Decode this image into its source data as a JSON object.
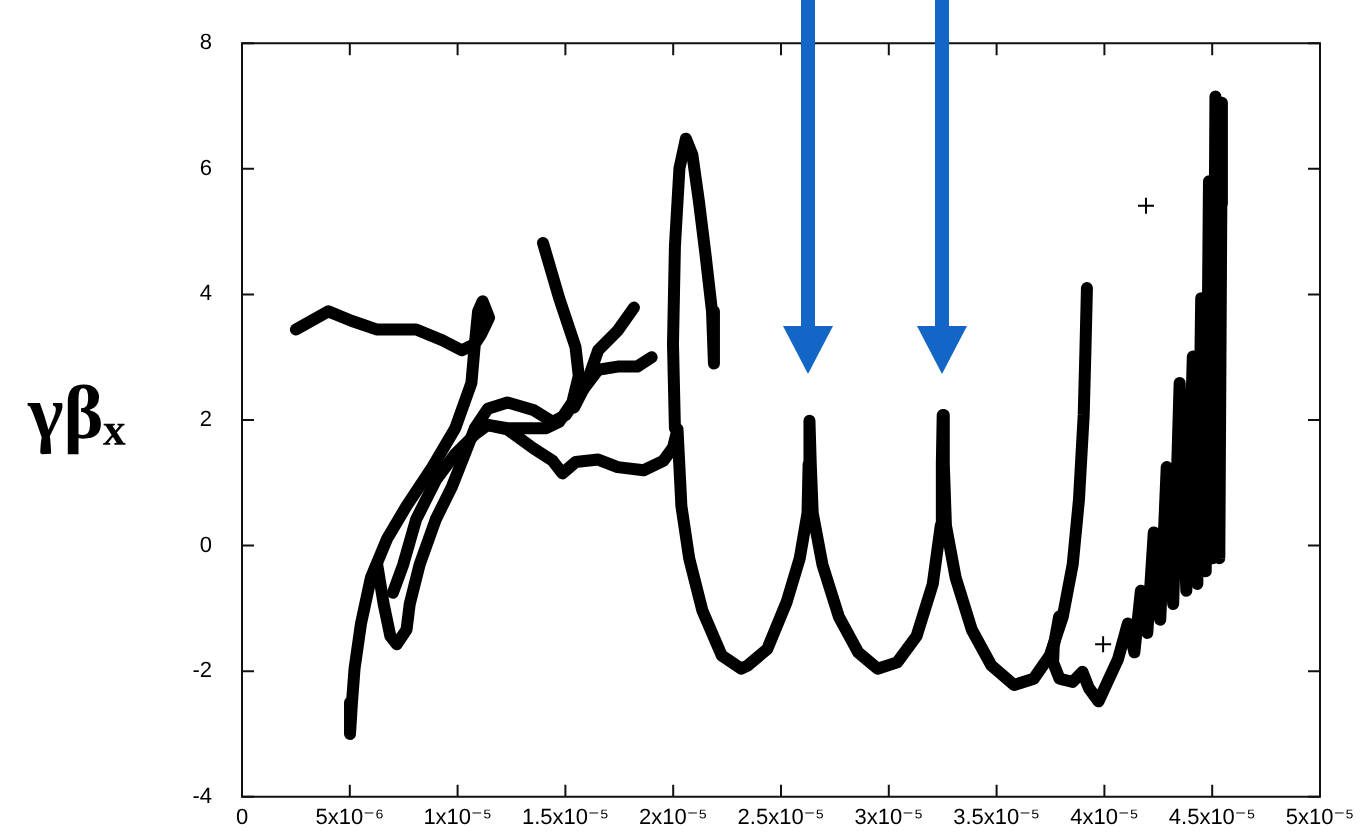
{
  "chart_data": {
    "type": "line",
    "ylabel": "γβₓ",
    "xlim": [
      0,
      5e-05
    ],
    "ylim": [
      -4,
      8
    ],
    "xticks": [
      0,
      {
        "value": 5e-06,
        "label": "5x10⁻⁶"
      },
      {
        "value": 1e-05,
        "label": "1x10⁻⁵"
      },
      {
        "value": 1.5e-05,
        "label": "1.5x10⁻⁵"
      },
      {
        "value": 2e-05,
        "label": "2x10⁻⁵"
      },
      {
        "value": 2.5e-05,
        "label": "2.5x10⁻⁵"
      },
      {
        "value": 3e-05,
        "label": "3x10⁻⁵"
      },
      {
        "value": 3.5e-05,
        "label": "3.5x10⁻⁵"
      },
      {
        "value": 4e-05,
        "label": "4x10⁻⁵"
      },
      {
        "value": 4.5e-05,
        "label": "4.5x10⁻⁵"
      },
      {
        "value": 5e-05,
        "label": "5x10⁻⁵"
      }
    ],
    "yticks": [
      -4,
      -2,
      0,
      2,
      4,
      6,
      8
    ],
    "series": [
      {
        "color": "#000000",
        "x": [
          2.5e-06,
          4.01e-06,
          5.07e-06,
          6.27e-06,
          8.08e-06,
          9.29e-06,
          1.019e-05,
          1.08e-05,
          1.095e-05,
          1.116e-05,
          1.146e-05,
          1.11e-05,
          1.08e-05,
          1.064e-05,
          9.89e-06,
          8.83e-06,
          7.63e-06,
          6.73e-06,
          5.98e-06,
          5.52e-06,
          5.22e-06,
          5.1e-06,
          5.01e-06
        ],
        "values": [
          3.44,
          3.73,
          3.58,
          3.44,
          3.44,
          3.27,
          3.11,
          3.21,
          3.73,
          3.89,
          3.63,
          3.37,
          3.21,
          2.59,
          1.87,
          1.25,
          0.63,
          0.11,
          -0.51,
          -1.24,
          -1.96,
          -2.5,
          -3.0
        ]
      },
      {
        "color": "#000000",
        "x": [
          6.27e-06,
          6.57e-06,
          6.88e-06,
          7.18e-06,
          7.63e-06,
          7.78e-06,
          8.24e-06,
          8.99e-06,
          9.74e-06,
          1.034e-05,
          1.08e-05,
          1.14e-05,
          1.231e-05,
          1.351e-05,
          1.441e-05,
          1.502e-05,
          1.562e-05,
          1.652e-05,
          1.742e-05,
          1.833e-05,
          1.9e-05
        ],
        "values": [
          -0.3,
          -0.93,
          -1.44,
          -1.57,
          -1.34,
          -0.93,
          -0.3,
          0.42,
          0.94,
          1.46,
          1.87,
          2.18,
          2.28,
          2.16,
          1.97,
          2.08,
          2.39,
          2.8,
          2.85,
          2.85,
          3.0
        ]
      },
      {
        "color": "#000000",
        "x": [
          7e-06,
          7.48e-06,
          8.08e-06,
          8.99e-06,
          9.89e-06,
          1.08e-05,
          1.14e-05,
          1.231e-05,
          1.351e-05,
          1.411e-05,
          1.471e-05,
          1.532e-05,
          1.562e-05,
          1.547e-05,
          1.471e-05,
          1.396e-05
        ],
        "values": [
          -0.75,
          -0.3,
          0.42,
          1.04,
          1.46,
          1.77,
          1.92,
          1.87,
          1.87,
          1.87,
          1.97,
          2.28,
          2.7,
          3.16,
          3.94,
          4.82
        ]
      },
      {
        "color": "#000000",
        "x": [
          1.54e-05,
          1.6e-05,
          1.652e-05,
          1.742e-05,
          1.818e-05
        ],
        "values": [
          2.2,
          2.6,
          3.11,
          3.42,
          3.79
        ]
      },
      {
        "color": "#000000",
        "x": [
          1.14e-05,
          1.231e-05,
          1.351e-05,
          1.441e-05,
          1.486e-05,
          1.547e-05,
          1.652e-05,
          1.742e-05,
          1.863e-05,
          1.954e-05,
          1.999e-05,
          2.02e-05,
          2.038e-05,
          2.074e-05,
          2.135e-05,
          2.225e-05,
          2.316e-05,
          2.345e-05,
          2.436e-05,
          2.526e-05,
          2.587e-05,
          2.623e-05,
          2.628e-05,
          2.632e-05,
          2.638e-05,
          2.647e-05,
          2.692e-05,
          2.768e-05,
          2.858e-05,
          2.948e-05,
          3.039e-05,
          3.129e-05,
          3.204e-05,
          3.241e-05,
          3.246e-05,
          3.25e-05,
          3.255e-05,
          3.265e-05,
          3.31e-05,
          3.385e-05,
          3.476e-05,
          3.581e-05,
          3.672e-05,
          3.747e-05,
          3.807e-05,
          3.853e-05,
          3.882e-05,
          3.904e-05,
          3.912e-05,
          3.919e-05
        ],
        "values": [
          1.92,
          1.85,
          1.55,
          1.35,
          1.15,
          1.33,
          1.37,
          1.25,
          1.2,
          1.35,
          1.56,
          1.85,
          0.63,
          -0.2,
          -1.03,
          -1.75,
          -1.96,
          -1.91,
          -1.65,
          -0.9,
          -0.2,
          0.52,
          1.3,
          1.99,
          1.3,
          0.52,
          -0.3,
          -1.13,
          -1.7,
          -1.96,
          -1.86,
          -1.44,
          -0.61,
          0.32,
          1.3,
          2.08,
          1.3,
          0.32,
          -0.51,
          -1.34,
          -1.91,
          -2.22,
          -2.12,
          -1.75,
          -1.13,
          -0.3,
          0.73,
          2.08,
          3.11,
          4.1
        ]
      },
      {
        "color": "#000000",
        "x": [
          2.008e-05,
          1.999e-05,
          2.008e-05,
          2.029e-05,
          2.059e-05,
          2.089e-05,
          2.119e-05,
          2.149e-05,
          2.18e-05,
          2.189e-05
        ],
        "values": [
          1.87,
          3.21,
          4.77,
          6.01,
          6.48,
          6.22,
          5.49,
          4.66,
          3.73,
          2.9
        ]
      },
      {
        "color": "#000000",
        "x": [
          3.79e-05,
          3.765e-05,
          3.762e-05,
          3.792e-05,
          3.853e-05,
          3.898e-05,
          3.928e-05,
          3.973e-05,
          4.063e-05,
          4.109e-05,
          4.139e-05,
          4.169e-05,
          4.199e-05,
          4.229e-05,
          4.259e-05,
          4.289e-05,
          4.319e-05,
          4.349e-05,
          4.38e-05,
          4.41e-05,
          4.431e-05,
          4.449e-05,
          4.47e-05,
          4.485e-05,
          4.503e-05,
          4.515e-05,
          4.533e-05,
          4.545e-05,
          4.545e-05
        ],
        "values": [
          -1.13,
          -1.6,
          -1.86,
          -2.12,
          -2.17,
          -2.01,
          -2.27,
          -2.48,
          -1.81,
          -1.24,
          -1.7,
          -0.72,
          -1.39,
          0.21,
          -1.18,
          1.25,
          -0.93,
          2.59,
          -0.72,
          3.01,
          -0.61,
          3.94,
          -0.41,
          5.8,
          -0.2,
          7.15,
          -0.2,
          7.05,
          5.44
        ]
      },
      {
        "type": "scatter",
        "marker": "cross",
        "color": "#000000",
        "x": [
          4.193e-05,
          3.994e-05
        ],
        "values": [
          5.41,
          -1.57
        ]
      }
    ]
  }
}
